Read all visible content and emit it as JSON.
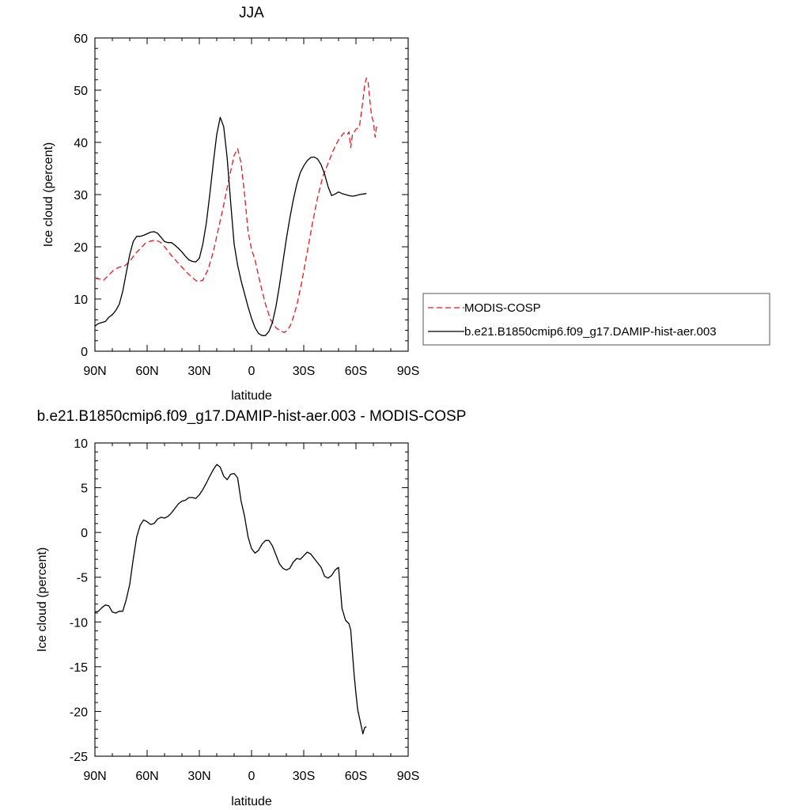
{
  "chart_data": [
    {
      "type": "line",
      "title": "JJA",
      "xlabel": "latitude",
      "ylabel": "Ice cloud (percent)",
      "xlim": [
        90,
        -90
      ],
      "ylim": [
        0,
        60
      ],
      "xticks": [
        90,
        60,
        30,
        0,
        -30,
        -60,
        -90
      ],
      "xtick_labels": [
        "90N",
        "60N",
        "30N",
        "0",
        "30S",
        "60S",
        "90S"
      ],
      "yticks": [
        0,
        10,
        20,
        30,
        40,
        50,
        60
      ],
      "ytick_labels": [
        "0",
        "10",
        "20",
        "30",
        "40",
        "50",
        "60"
      ],
      "grid": false,
      "legend_position": "right",
      "series": [
        {
          "name": "MODIS-COSP",
          "color": "#e8161c",
          "dash": "dashed",
          "x": [
            90,
            87,
            85,
            82,
            79,
            76,
            73,
            70,
            67,
            64,
            61,
            58,
            55,
            52,
            49,
            46,
            43,
            40,
            37,
            34,
            31,
            28,
            25,
            22,
            19,
            16,
            13,
            10,
            8,
            6,
            4,
            2,
            0,
            -2,
            -5,
            -8,
            -11,
            -14,
            -17,
            -19,
            -21,
            -23,
            -26,
            -29,
            -32,
            -35,
            -38,
            -41,
            -44,
            -47,
            -50,
            -53,
            -55,
            -56,
            -57,
            -58,
            -60,
            -62,
            -64,
            -65,
            -66,
            -67,
            -68,
            -69,
            -70,
            -71,
            -72
          ],
          "y": [
            14,
            13.8,
            13.6,
            14.6,
            15.6,
            16.1,
            16.3,
            17.2,
            18.6,
            19.6,
            20.7,
            21.1,
            21.3,
            20.8,
            19.6,
            18.3,
            17.2,
            16.1,
            15.0,
            14.1,
            13.3,
            13.6,
            15.6,
            19.0,
            23.5,
            28.0,
            33.0,
            37.5,
            38.8,
            36.0,
            30.0,
            23.0,
            19.5,
            17.5,
            13.0,
            9.0,
            6.0,
            4.5,
            3.8,
            3.6,
            4.2,
            5.4,
            8.8,
            13.5,
            19.0,
            24.5,
            29.5,
            33.5,
            36.0,
            38.5,
            40.5,
            41.8,
            41.5,
            42.0,
            39.0,
            41.5,
            42.5,
            43.0,
            48.0,
            51.0,
            52.3,
            51.5,
            48.0,
            45.0,
            44.0,
            41.0,
            43.5
          ]
        },
        {
          "name": "b.e21.B1850cmip6.f09_g17.DAMIP-hist-aer.003",
          "color": "#000000",
          "dash": "solid",
          "x": [
            90,
            88,
            86,
            84,
            82,
            80,
            78,
            76,
            74,
            72,
            70,
            68,
            66,
            64,
            62,
            60,
            58,
            56,
            54,
            52,
            50,
            48,
            46,
            44,
            42,
            40,
            38,
            36,
            34,
            32,
            30,
            28,
            26,
            24,
            22,
            20,
            18,
            16,
            14,
            12,
            10,
            8,
            6,
            4,
            2,
            0,
            -2,
            -4,
            -6,
            -8,
            -10,
            -12,
            -14,
            -16,
            -18,
            -20,
            -22,
            -24,
            -26,
            -28,
            -30,
            -32,
            -34,
            -36,
            -38,
            -40,
            -42,
            -44,
            -46,
            -48,
            -50,
            -52,
            -54,
            -56,
            -58,
            -60,
            -62,
            -64,
            -66
          ],
          "y": [
            4.8,
            5.3,
            5.5,
            5.7,
            6.5,
            7.0,
            7.8,
            9.0,
            11.5,
            15.0,
            18.5,
            21.0,
            22.0,
            22.0,
            22.2,
            22.5,
            22.8,
            22.9,
            22.6,
            21.8,
            21.0,
            20.8,
            20.8,
            20.3,
            19.7,
            19.0,
            18.2,
            17.5,
            17.2,
            17.1,
            17.8,
            20.5,
            24.5,
            30.0,
            36.0,
            41.5,
            44.8,
            43.0,
            37.0,
            28.5,
            20.5,
            16.5,
            13.5,
            11.0,
            8.5,
            6.3,
            4.5,
            3.4,
            3.0,
            3.0,
            3.8,
            5.5,
            8.5,
            12.5,
            17.0,
            21.5,
            25.5,
            29.0,
            32.0,
            34.2,
            35.5,
            36.5,
            37.1,
            37.2,
            36.8,
            35.7,
            33.9,
            31.5,
            29.8,
            30.1,
            30.5,
            30.2,
            30.0,
            29.8,
            29.7,
            29.8,
            30.0,
            30.1,
            30.2
          ]
        }
      ]
    },
    {
      "type": "line",
      "title": "b.e21.B1850cmip6.f09_g17.DAMIP-hist-aer.003 - MODIS-COSP",
      "xlabel": "latitude",
      "ylabel": "Ice cloud (percent)",
      "xlim": [
        90,
        -90
      ],
      "ylim": [
        -25,
        10
      ],
      "xticks": [
        90,
        60,
        30,
        0,
        -30,
        -60,
        -90
      ],
      "xtick_labels": [
        "90N",
        "60N",
        "30N",
        "0",
        "30S",
        "60S",
        "90S"
      ],
      "yticks": [
        -25,
        -20,
        -15,
        -10,
        -5,
        0,
        5,
        10
      ],
      "ytick_labels": [
        "-25",
        "-20",
        "-15",
        "-10",
        "-5",
        "0",
        "5",
        "10"
      ],
      "grid": false,
      "series": [
        {
          "color": "#000000",
          "dash": "solid",
          "x": [
            90,
            88,
            86,
            84,
            82,
            80,
            78,
            76,
            74,
            72,
            70,
            68,
            66,
            64,
            62,
            60,
            58,
            56,
            54,
            52,
            50,
            48,
            46,
            44,
            42,
            40,
            38,
            36,
            34,
            32,
            30,
            28,
            26,
            24,
            22,
            20,
            18,
            16,
            14,
            12,
            10,
            8,
            6,
            4,
            2,
            0,
            -2,
            -4,
            -6,
            -8,
            -10,
            -12,
            -14,
            -16,
            -18,
            -20,
            -22,
            -24,
            -26,
            -28,
            -30,
            -32,
            -34,
            -36,
            -38,
            -40,
            -42,
            -44,
            -46,
            -48,
            -50,
            -52,
            -54,
            -56,
            -57,
            -58,
            -59,
            -60,
            -61,
            -62,
            -63,
            -64,
            -65,
            -66
          ],
          "y": [
            -8.9,
            -8.8,
            -8.4,
            -8.1,
            -8.2,
            -8.9,
            -9.0,
            -8.8,
            -8.8,
            -7.5,
            -5.8,
            -3.0,
            -0.5,
            0.8,
            1.4,
            1.2,
            0.9,
            1.0,
            1.5,
            1.7,
            1.6,
            1.8,
            2.2,
            2.7,
            3.2,
            3.5,
            3.6,
            3.9,
            3.9,
            3.8,
            4.2,
            4.8,
            5.5,
            6.3,
            7.0,
            7.6,
            7.3,
            6.3,
            5.9,
            6.5,
            6.6,
            6.1,
            3.5,
            1.8,
            -0.5,
            -1.8,
            -2.3,
            -2.0,
            -1.3,
            -0.9,
            -0.9,
            -1.5,
            -2.5,
            -3.5,
            -4.0,
            -4.2,
            -4.0,
            -3.3,
            -2.9,
            -3.0,
            -2.6,
            -2.2,
            -2.4,
            -2.9,
            -3.4,
            -3.9,
            -4.9,
            -5.1,
            -4.8,
            -4.2,
            -3.9,
            -8.5,
            -9.8,
            -10.2,
            -10.9,
            -13.5,
            -16.0,
            -18.0,
            -19.8,
            -20.7,
            -21.6,
            -22.5,
            -21.8,
            -21.7
          ]
        }
      ]
    }
  ]
}
